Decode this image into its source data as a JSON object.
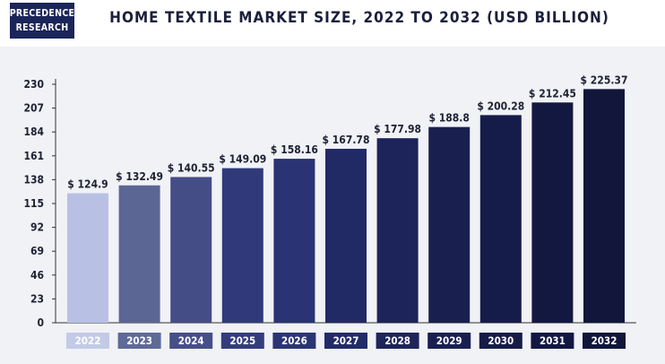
{
  "logo": {
    "line1": "PRECEDENCE",
    "line2": "RESEARCH"
  },
  "colors": {
    "background": "#f1f2f6",
    "bar_colors": [
      "#b8c0e4",
      "#5b6694",
      "#454d86",
      "#303a7b",
      "#2a3373",
      "#222a66",
      "#1c2459",
      "#192050",
      "#161c49",
      "#131841",
      "#11163a"
    ],
    "label_colors": [
      "#c3cae6",
      "#5f6a97",
      "#474f88",
      "#333d7c",
      "#2c3574",
      "#232b66",
      "#1d2559",
      "#192050",
      "#161c48",
      "#131842",
      "#11163a"
    ]
  },
  "chart_data": {
    "type": "bar",
    "title": "HOME TEXTILE MARKET SIZE, 2022 TO 2032 (USD BILLION)",
    "categories": [
      "2022",
      "2023",
      "2024",
      "2025",
      "2026",
      "2027",
      "2028",
      "2029",
      "2030",
      "2031",
      "2032"
    ],
    "values": [
      124.9,
      132.49,
      140.55,
      149.09,
      158.16,
      167.78,
      177.98,
      188.8,
      200.28,
      212.45,
      225.37
    ],
    "data_labels": [
      "$ 124.9",
      "$ 132.49",
      "$ 140.55",
      "$ 149.09",
      "$ 158.16",
      "$ 167.78",
      "$ 177.98",
      "$ 188.8",
      "$ 200.28",
      "$ 212.45",
      "$ 225.37"
    ],
    "yticks": [
      0,
      23,
      46,
      69,
      92,
      115,
      138,
      161,
      184,
      207,
      230
    ],
    "ylim": [
      0,
      230
    ],
    "xlabel": "",
    "ylabel": "",
    "grid": false,
    "legend": "none"
  }
}
